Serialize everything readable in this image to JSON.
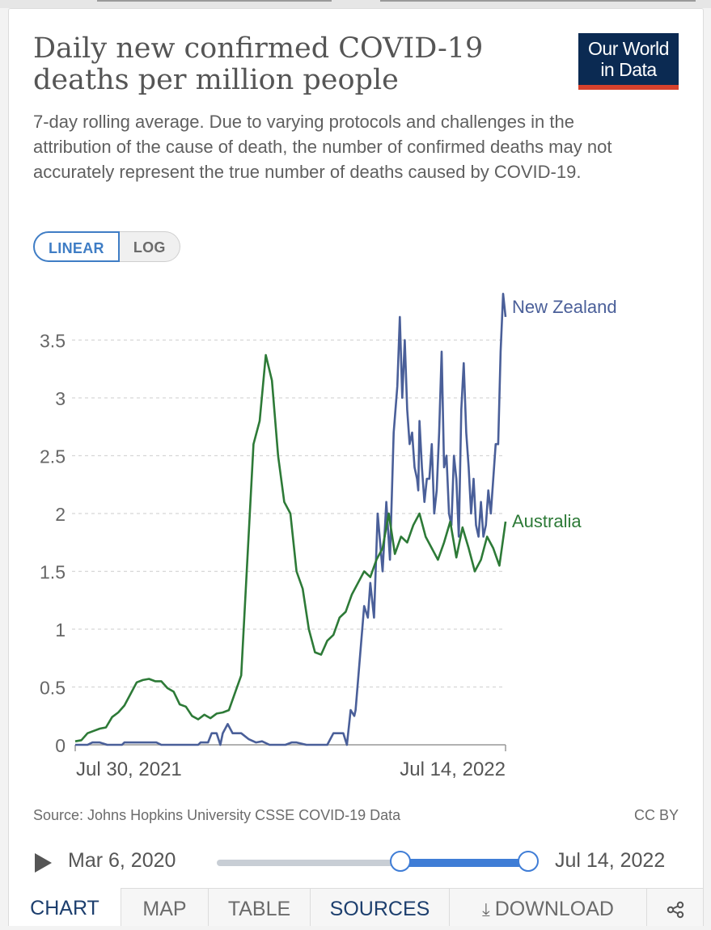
{
  "header": {
    "title": "Daily new confirmed COVID-19 deaths per million people",
    "subtitle": "7-day rolling average. Due to varying protocols and challenges in the attribution of the cause of death, the number of confirmed deaths may not accurately represent the true number of deaths caused by COVID-19.",
    "logo_line1": "Our World",
    "logo_line2": "in Data"
  },
  "scale_toggle": {
    "linear_label": "LINEAR",
    "log_label": "LOG",
    "selected": "LINEAR"
  },
  "chart_data": {
    "type": "line",
    "title": "Daily new confirmed COVID-19 deaths per million people",
    "xlabel": "",
    "ylabel": "",
    "x_range": [
      "Jul 30, 2021",
      "Jul 14, 2022"
    ],
    "x_tick_labels": [
      "Jul 30, 2021",
      "Jul 14, 2022"
    ],
    "y_tick_labels": [
      "0",
      "0.5",
      "1",
      "1.5",
      "2",
      "2.5",
      "3",
      "3.5"
    ],
    "ylim": [
      0,
      3.5
    ],
    "grid": true,
    "legend": "inline-right",
    "series": [
      {
        "name": "New Zealand",
        "color": "#4a5f99",
        "x_days": [
          0,
          10,
          14,
          20,
          26,
          38,
          40,
          66,
          70,
          100,
          102,
          108,
          111,
          115,
          118,
          120,
          124,
          128,
          135,
          141,
          147,
          152,
          158,
          171,
          176,
          180,
          188,
          193,
          198,
          205,
          210,
          218,
          221,
          224,
          227,
          228,
          235,
          238,
          240,
          243,
          246,
          250,
          253,
          256,
          259,
          262,
          264,
          266,
          268,
          270,
          272,
          274,
          276,
          278,
          279,
          280,
          282,
          284,
          286,
          288,
          290,
          292,
          294,
          296,
          298,
          300,
          302,
          304,
          306,
          308,
          310,
          312,
          314,
          316,
          318,
          320,
          322,
          324,
          326,
          328,
          330,
          332,
          334,
          336,
          338,
          340,
          342,
          344,
          346,
          348,
          350
        ],
        "values": [
          0,
          0,
          0.02,
          0.02,
          0,
          0,
          0.02,
          0.02,
          0,
          0,
          0.02,
          0.02,
          0.1,
          0.1,
          0,
          0.1,
          0.18,
          0.1,
          0.1,
          0.05,
          0.02,
          0.03,
          0,
          0,
          0.02,
          0.02,
          0,
          0,
          0,
          0,
          0.1,
          0.1,
          0,
          0.3,
          0.25,
          0.3,
          1.2,
          1.1,
          1.4,
          1.1,
          2.0,
          1.5,
          2.1,
          1.6,
          2.7,
          3.1,
          3.7,
          3.0,
          3.5,
          2.9,
          2.6,
          2.7,
          2.4,
          2.3,
          2.2,
          2.8,
          2.4,
          2.1,
          2.3,
          2.3,
          2.6,
          2.0,
          2.2,
          2.7,
          3.4,
          2.4,
          2.5,
          2.0,
          1.9,
          2.5,
          2.3,
          1.8,
          2.9,
          3.3,
          2.7,
          2.4,
          2.0,
          2.3,
          1.9,
          1.8,
          2.1,
          1.8,
          1.9,
          2.2,
          2.0,
          2.3,
          2.6,
          2.6,
          3.4,
          3.9,
          3.7
        ]
      },
      {
        "name": "Australia",
        "color": "#2d7a37",
        "x_days": [
          0,
          5,
          10,
          15,
          20,
          25,
          30,
          35,
          40,
          45,
          50,
          55,
          60,
          65,
          70,
          75,
          80,
          85,
          90,
          95,
          100,
          105,
          110,
          115,
          120,
          125,
          130,
          135,
          140,
          145,
          150,
          155,
          160,
          165,
          170,
          175,
          180,
          185,
          190,
          195,
          200,
          205,
          210,
          215,
          220,
          225,
          230,
          235,
          240,
          245,
          250,
          255,
          260,
          265,
          270,
          275,
          280,
          285,
          290,
          295,
          300,
          305,
          310,
          315,
          320,
          325,
          330,
          335,
          340,
          345,
          350
        ],
        "values": [
          0.03,
          0.04,
          0.1,
          0.12,
          0.14,
          0.15,
          0.24,
          0.28,
          0.34,
          0.44,
          0.54,
          0.56,
          0.57,
          0.55,
          0.55,
          0.49,
          0.46,
          0.35,
          0.33,
          0.25,
          0.22,
          0.26,
          0.23,
          0.27,
          0.28,
          0.3,
          0.45,
          0.6,
          1.6,
          2.6,
          2.8,
          3.37,
          3.15,
          2.5,
          2.1,
          2.0,
          1.5,
          1.35,
          1.0,
          0.8,
          0.78,
          0.9,
          0.95,
          1.1,
          1.15,
          1.3,
          1.4,
          1.5,
          1.45,
          1.6,
          1.7,
          2.0,
          1.65,
          1.8,
          1.75,
          1.9,
          2.0,
          1.8,
          1.7,
          1.6,
          1.75,
          1.93,
          1.62,
          1.88,
          1.7,
          1.5,
          1.6,
          1.8,
          1.7,
          1.55,
          1.93
        ]
      }
    ]
  },
  "footer": {
    "source": "Source: Johns Hopkins University CSSE COVID-19 Data",
    "license": "CC BY"
  },
  "timeline": {
    "start_label": "Mar 6, 2020",
    "end_label": "Jul 14, 2022",
    "range_start_fraction": 0.59,
    "range_end_fraction": 1.0
  },
  "tabs": [
    {
      "label": "CHART"
    },
    {
      "label": "MAP"
    },
    {
      "label": "TABLE"
    },
    {
      "label": "SOURCES"
    },
    {
      "label": "DOWNLOAD"
    }
  ],
  "icons": {
    "download": "download-icon",
    "share": "share-icon",
    "play": "play-icon"
  }
}
